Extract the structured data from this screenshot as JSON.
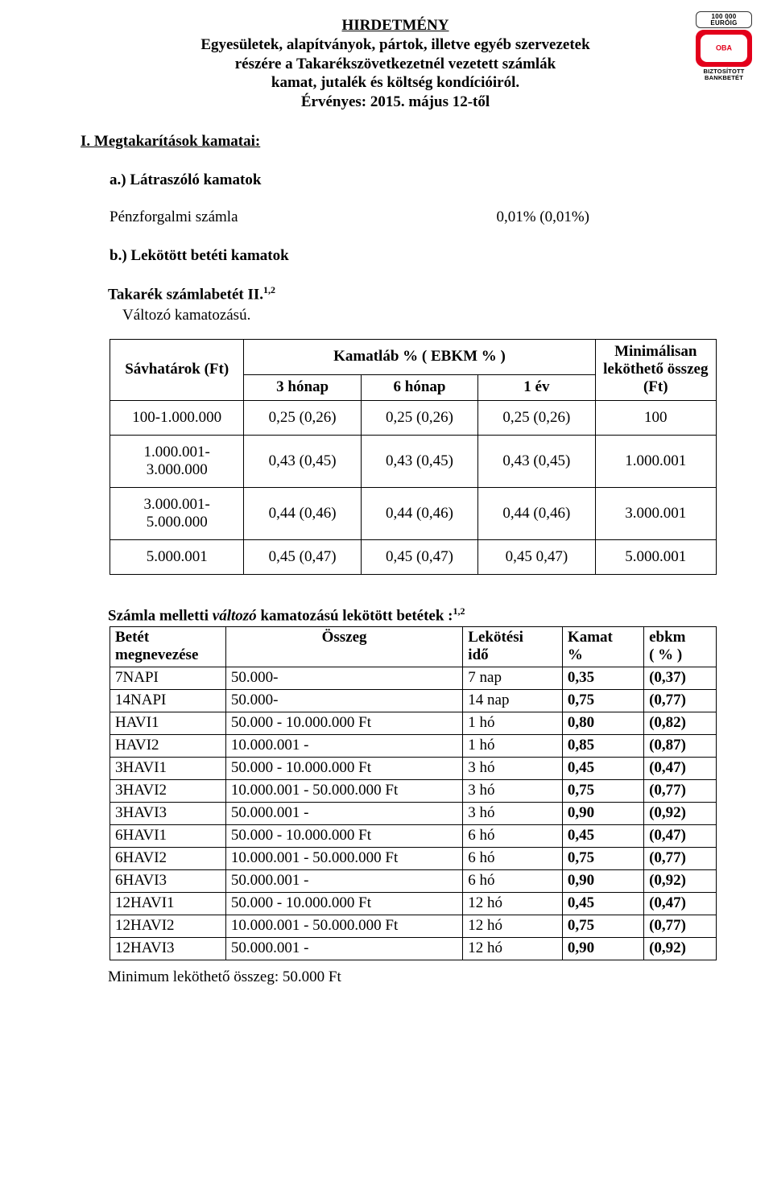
{
  "logo": {
    "top_caption": "100 000\nEURÓIG",
    "middle_text": "OBA",
    "bottom_caption": "BIZTOSÍTOTT\nBANKBETÉT"
  },
  "title": {
    "line1": "HIRDETMÉNY",
    "line2": "Egyesületek, alapítványok, pártok, illetve egyéb szervezetek",
    "line3": "részére a Takarékszövetkezetnél vezetett számlák",
    "line4": "kamat, jutalék és költség kondícióiról.",
    "line5": "Érvényes: 2015. május  12-től"
  },
  "section1": {
    "heading": "I. Megtakarítások kamatai:",
    "a_heading": "a.) Látraszóló kamatok",
    "penz_label": "Pénzforgalmi számla",
    "penz_value": "0,01% (0,01%)",
    "b_heading": "b.) Lekötött betéti kamatok",
    "takarek_label_pre": "Takarék számlabetét II.",
    "takarek_sup": "1,2",
    "valtozo": "Változó kamatozású."
  },
  "table1": {
    "th_savhatarok": "Sávhatárok (Ft)",
    "th_kamatlab": "Kamatláb %  ( EBKM % )",
    "th_min": "Minimálisan leköthető összeg (Ft)",
    "sub_3h": "3 hónap",
    "sub_6h": "6 hónap",
    "sub_1e": "1 év",
    "rows": [
      {
        "range": "100-1.000.000",
        "c3": "0,25 (0,26)",
        "c6": "0,25 (0,26)",
        "c1": "0,25 (0,26)",
        "min": "100"
      },
      {
        "range": "1.000.001-3.000.000",
        "c3": "0,43 (0,45)",
        "c6": "0,43 (0,45)",
        "c1": "0,43 (0,45)",
        "min": "1.000.001"
      },
      {
        "range": "3.000.001-5.000.000",
        "c3": "0,44 (0,46)",
        "c6": "0,44 (0,46)",
        "c1": "0,44 (0,46)",
        "min": "3.000.001"
      },
      {
        "range": "5.000.001",
        "c3": "0,45 (0,47)",
        "c6": "0,45 (0,47)",
        "c1": "0,45 0,47)",
        "min": "5.000.001"
      }
    ]
  },
  "table2": {
    "title_pre": "Számla melletti ",
    "title_ital": "változó",
    "title_post": " kamatozású lekötött betétek :",
    "title_sup": "1,2",
    "head": {
      "name1": "Betét",
      "name2": "megnevezése",
      "amt": "Összeg",
      "time1": "Lekötési",
      "time2": "idő",
      "rate1": "Kamat",
      "rate2": "%",
      "ebkm1": "ebkm",
      "ebkm2": "( % )"
    },
    "rows": [
      {
        "name": "7NAPI",
        "amt": "50.000-",
        "time": "7 nap",
        "rate": "0,35",
        "ebkm": "(0,37)"
      },
      {
        "name": "14NAPI",
        "amt": "50.000-",
        "time": "14 nap",
        "rate": "0,75",
        "ebkm": "(0,77)"
      },
      {
        "name": "HAVI1",
        "amt": "50.000 - 10.000.000 Ft",
        "time": "1 hó",
        "rate": "0,80",
        "ebkm": "(0,82)"
      },
      {
        "name": "HAVI2",
        "amt": "10.000.001 -",
        "time": "1 hó",
        "rate": "0,85",
        "ebkm": "(0,87)"
      },
      {
        "name": "3HAVI1",
        "amt": "50.000 - 10.000.000 Ft",
        "time": "3 hó",
        "rate": "0,45",
        "ebkm": "(0,47)"
      },
      {
        "name": "3HAVI2",
        "amt": "10.000.001 - 50.000.000 Ft",
        "time": "3 hó",
        "rate": "0,75",
        "ebkm": "(0,77)"
      },
      {
        "name": "3HAVI3",
        "amt": "50.000.001 -",
        "time": "3 hó",
        "rate": "0,90",
        "ebkm": "(0,92)"
      },
      {
        "name": "6HAVI1",
        "amt": "50.000 - 10.000.000 Ft",
        "time": "6 hó",
        "rate": "0,45",
        "ebkm": "(0,47)"
      },
      {
        "name": "6HAVI2",
        "amt": "10.000.001 - 50.000.000 Ft",
        "time": "6 hó",
        "rate": "0,75",
        "ebkm": "(0,77)"
      },
      {
        "name": "6HAVI3",
        "amt": "50.000.001 -",
        "time": "6 hó",
        "rate": "0,90",
        "ebkm": "(0,92)"
      },
      {
        "name": "12HAVI1",
        "amt": "50.000 - 10.000.000 Ft",
        "time": "12 hó",
        "rate": "0,45",
        "ebkm": "(0,47)"
      },
      {
        "name": "12HAVI2",
        "amt": "10.000.001 - 50.000.000 Ft",
        "time": "12 hó",
        "rate": "0,75",
        "ebkm": "(0,77)"
      },
      {
        "name": "12HAVI3",
        "amt": "50.000.001 -",
        "time": "12 hó",
        "rate": "0,90",
        "ebkm": "(0,92)"
      }
    ]
  },
  "footnote": "Minimum leköthető összeg: 50.000 Ft"
}
